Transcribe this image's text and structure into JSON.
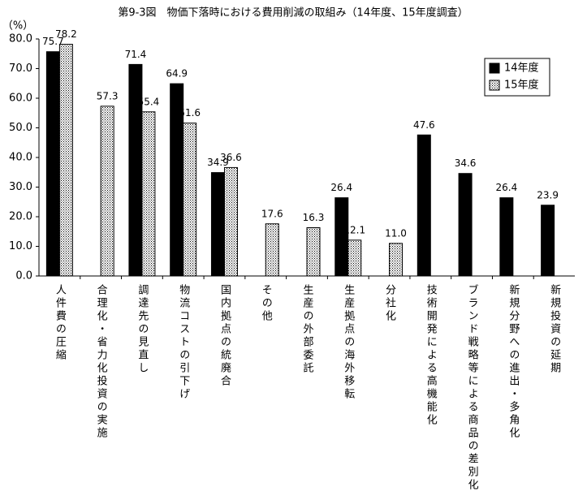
{
  "chart_data": {
    "type": "bar",
    "title": "第9-3図　物価下落時における費用削減の取組み（14年度、15年度調査）",
    "y_label": "（%）",
    "categories": [
      "人件費の圧縮",
      "合理化・省力化投資の実施",
      "調達先の見直し",
      "物流コストの引下げ",
      "国内拠点の統廃合",
      "その他",
      "生産の外部委託",
      "生産拠点の海外移転",
      "分社化",
      "技術開発による高機能化",
      "ブランド戦略等による商品の差別化",
      "新規分野への進出・多角化",
      "新規投資の延期"
    ],
    "series": [
      {
        "name": "14年度",
        "color": "#000000",
        "hatch": false,
        "values": [
          75.7,
          null,
          71.4,
          64.9,
          34.9,
          null,
          null,
          26.4,
          null,
          47.6,
          34.6,
          26.4,
          23.9
        ]
      },
      {
        "name": "15年度",
        "color": "#ffffff",
        "hatch": true,
        "values": [
          78.2,
          57.3,
          55.4,
          51.6,
          36.6,
          17.6,
          16.3,
          12.1,
          11.0,
          null,
          null,
          null,
          null
        ],
        "value_labels": [
          "78.2",
          "57.3",
          "55.4",
          "51.6",
          "36.6",
          "17.6",
          "16.3",
          "12.1",
          "11.0",
          null,
          null,
          null,
          null
        ]
      }
    ],
    "ylim": [
      0,
      80
    ],
    "yticks": [
      {
        "value": 0,
        "label": "0.0"
      },
      {
        "value": 10,
        "label": "10.0"
      },
      {
        "value": 20,
        "label": "20.0"
      },
      {
        "value": 30,
        "label": "30.0"
      },
      {
        "value": 40,
        "label": "40.0"
      },
      {
        "value": 50,
        "label": "50.0"
      },
      {
        "value": 60,
        "label": "60.0"
      },
      {
        "value": 70,
        "label": "70.0"
      },
      {
        "value": 80,
        "label": "80.0"
      }
    ],
    "grid": false,
    "legend": "upper right"
  }
}
